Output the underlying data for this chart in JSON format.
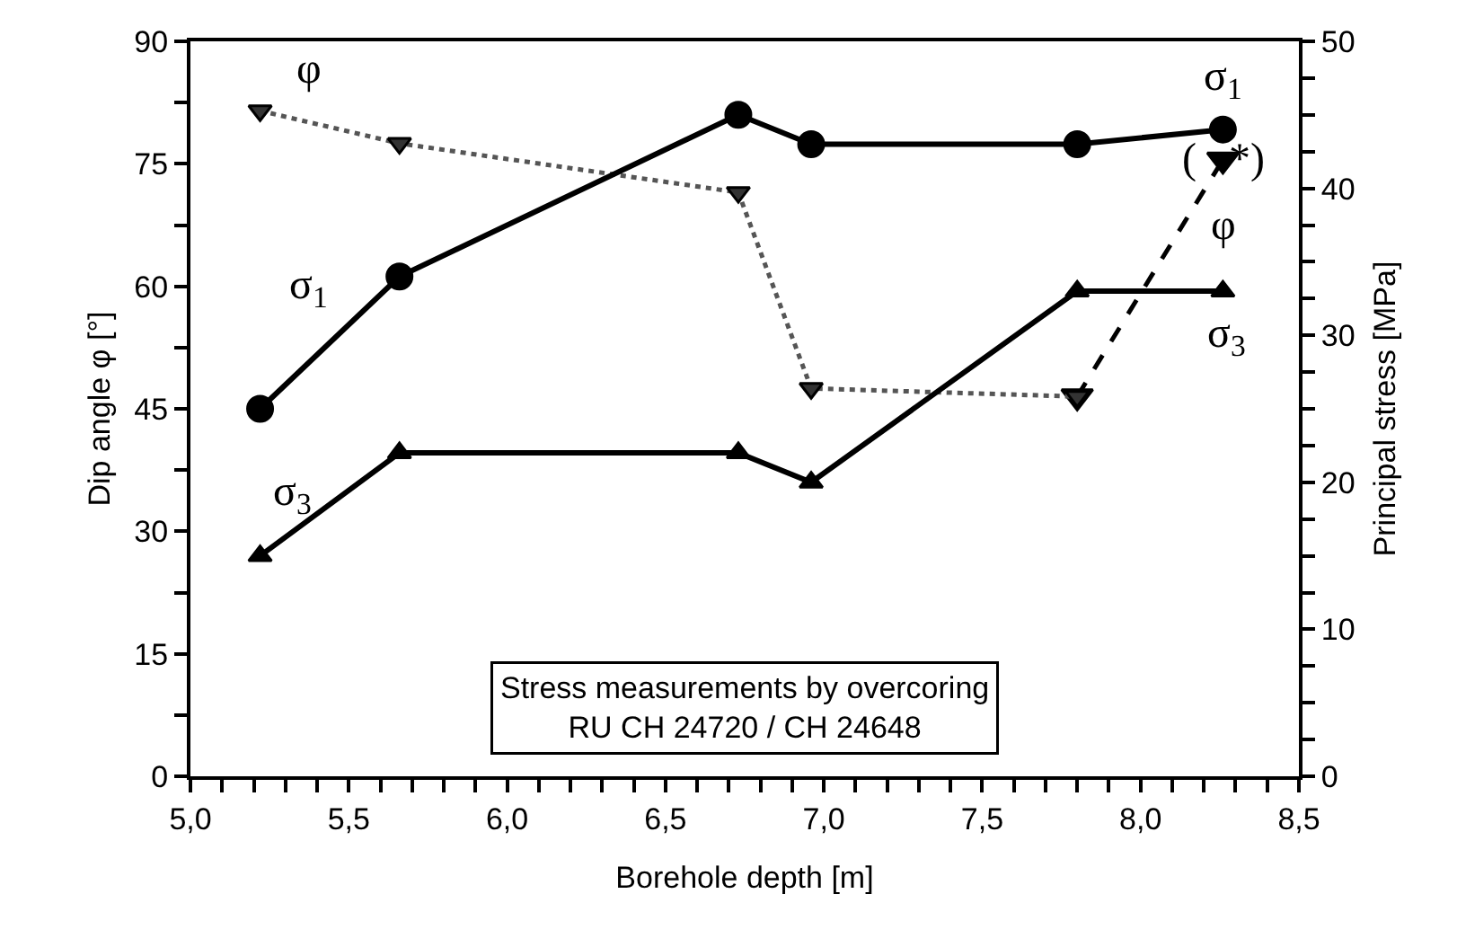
{
  "chart_data": {
    "type": "line",
    "xlabel": "Borehole depth [m]",
    "ylabel": "Dip angle φ [°]",
    "y2label": "Principal stress [MPa]",
    "xlim": [
      5.0,
      8.5
    ],
    "xticks": [
      {
        "value": 5.0,
        "label": "5,0"
      },
      {
        "value": 5.1,
        "label": null
      },
      {
        "value": 5.2,
        "label": null
      },
      {
        "value": 5.3,
        "label": null
      },
      {
        "value": 5.4,
        "label": null
      },
      {
        "value": 5.5,
        "label": "5,5"
      },
      {
        "value": 5.6,
        "label": null
      },
      {
        "value": 5.7,
        "label": null
      },
      {
        "value": 5.8,
        "label": null
      },
      {
        "value": 5.9,
        "label": null
      },
      {
        "value": 6.0,
        "label": "6,0"
      },
      {
        "value": 6.1,
        "label": null
      },
      {
        "value": 6.2,
        "label": null
      },
      {
        "value": 6.3,
        "label": null
      },
      {
        "value": 6.4,
        "label": null
      },
      {
        "value": 6.5,
        "label": "6,5"
      },
      {
        "value": 6.6,
        "label": null
      },
      {
        "value": 6.7,
        "label": null
      },
      {
        "value": 6.8,
        "label": null
      },
      {
        "value": 6.9,
        "label": null
      },
      {
        "value": 7.0,
        "label": "7,0"
      },
      {
        "value": 7.1,
        "label": null
      },
      {
        "value": 7.2,
        "label": null
      },
      {
        "value": 7.3,
        "label": null
      },
      {
        "value": 7.4,
        "label": null
      },
      {
        "value": 7.5,
        "label": "7,5"
      },
      {
        "value": 7.6,
        "label": null
      },
      {
        "value": 7.7,
        "label": null
      },
      {
        "value": 7.8,
        "label": null
      },
      {
        "value": 7.9,
        "label": null
      },
      {
        "value": 8.0,
        "label": "8,0"
      },
      {
        "value": 8.1,
        "label": null
      },
      {
        "value": 8.2,
        "label": null
      },
      {
        "value": 8.3,
        "label": null
      },
      {
        "value": 8.4,
        "label": null
      },
      {
        "value": 8.5,
        "label": "8,5"
      }
    ],
    "ylim": [
      0,
      90
    ],
    "yticks": [
      0,
      {
        "value": 7.5,
        "label": null
      },
      15,
      {
        "value": 22.5,
        "label": null
      },
      30,
      {
        "value": 37.5,
        "label": null
      },
      45,
      {
        "value": 52.5,
        "label": null
      },
      60,
      {
        "value": 67.5,
        "label": null
      },
      75,
      {
        "value": 82.5,
        "label": null
      },
      90
    ],
    "y2lim": [
      0,
      50
    ],
    "y2ticks": [
      0,
      {
        "value": 2.5,
        "label": null
      },
      {
        "value": 5,
        "label": null
      },
      {
        "value": 7.5,
        "label": null
      },
      10,
      {
        "value": 12.5,
        "label": null
      },
      {
        "value": 15,
        "label": null
      },
      {
        "value": 17.5,
        "label": null
      },
      20,
      {
        "value": 22.5,
        "label": null
      },
      {
        "value": 25,
        "label": null
      },
      {
        "value": 27.5,
        "label": null
      },
      30,
      {
        "value": 32.5,
        "label": null
      },
      {
        "value": 35,
        "label": null
      },
      {
        "value": 37.5,
        "label": null
      },
      40,
      {
        "value": 42.5,
        "label": null
      },
      {
        "value": 45,
        "label": null
      },
      {
        "value": 47.5,
        "label": null
      },
      50
    ],
    "grid": false,
    "series": [
      {
        "name": "φ",
        "color": "#555555",
        "x": [
          5.22,
          5.66,
          6.73,
          6.96,
          7.8
        ],
        "values": [
          81.5,
          77.5,
          71.5,
          47.5,
          46.5
        ],
        "marker": "triangle-down",
        "line_style": "dotted"
      },
      {
        "name": "φ",
        "color": "#000000",
        "x": [
          7.8,
          8.26
        ],
        "values": [
          46.5,
          75.5
        ],
        "marker": "triangle-down",
        "line_style": "dashed"
      },
      {
        "name": "σ$_{1}$",
        "color": "#000000",
        "x": [
          5.22,
          5.66,
          6.73,
          6.96,
          7.8,
          8.26
        ],
        "values": [
          25,
          34,
          45,
          43,
          43,
          44
        ],
        "marker": "circle",
        "line_style": "solid",
        "axis": "y2"
      },
      {
        "name": "σ$_{3}$",
        "color": "#000000",
        "x": [
          5.22,
          5.66,
          6.73,
          6.96,
          7.8,
          8.26
        ],
        "values": [
          15,
          22,
          22,
          20,
          33,
          33
        ],
        "marker": "triangle",
        "line_style": "solid",
        "axis": "y2"
      }
    ],
    "annotations": [
      {
        "text": "(   *)",
        "x": 8.26,
        "y": 75.5
      },
      "Stress measurements by overcoring\nRU CH 24720 / CH 24648"
    ]
  }
}
